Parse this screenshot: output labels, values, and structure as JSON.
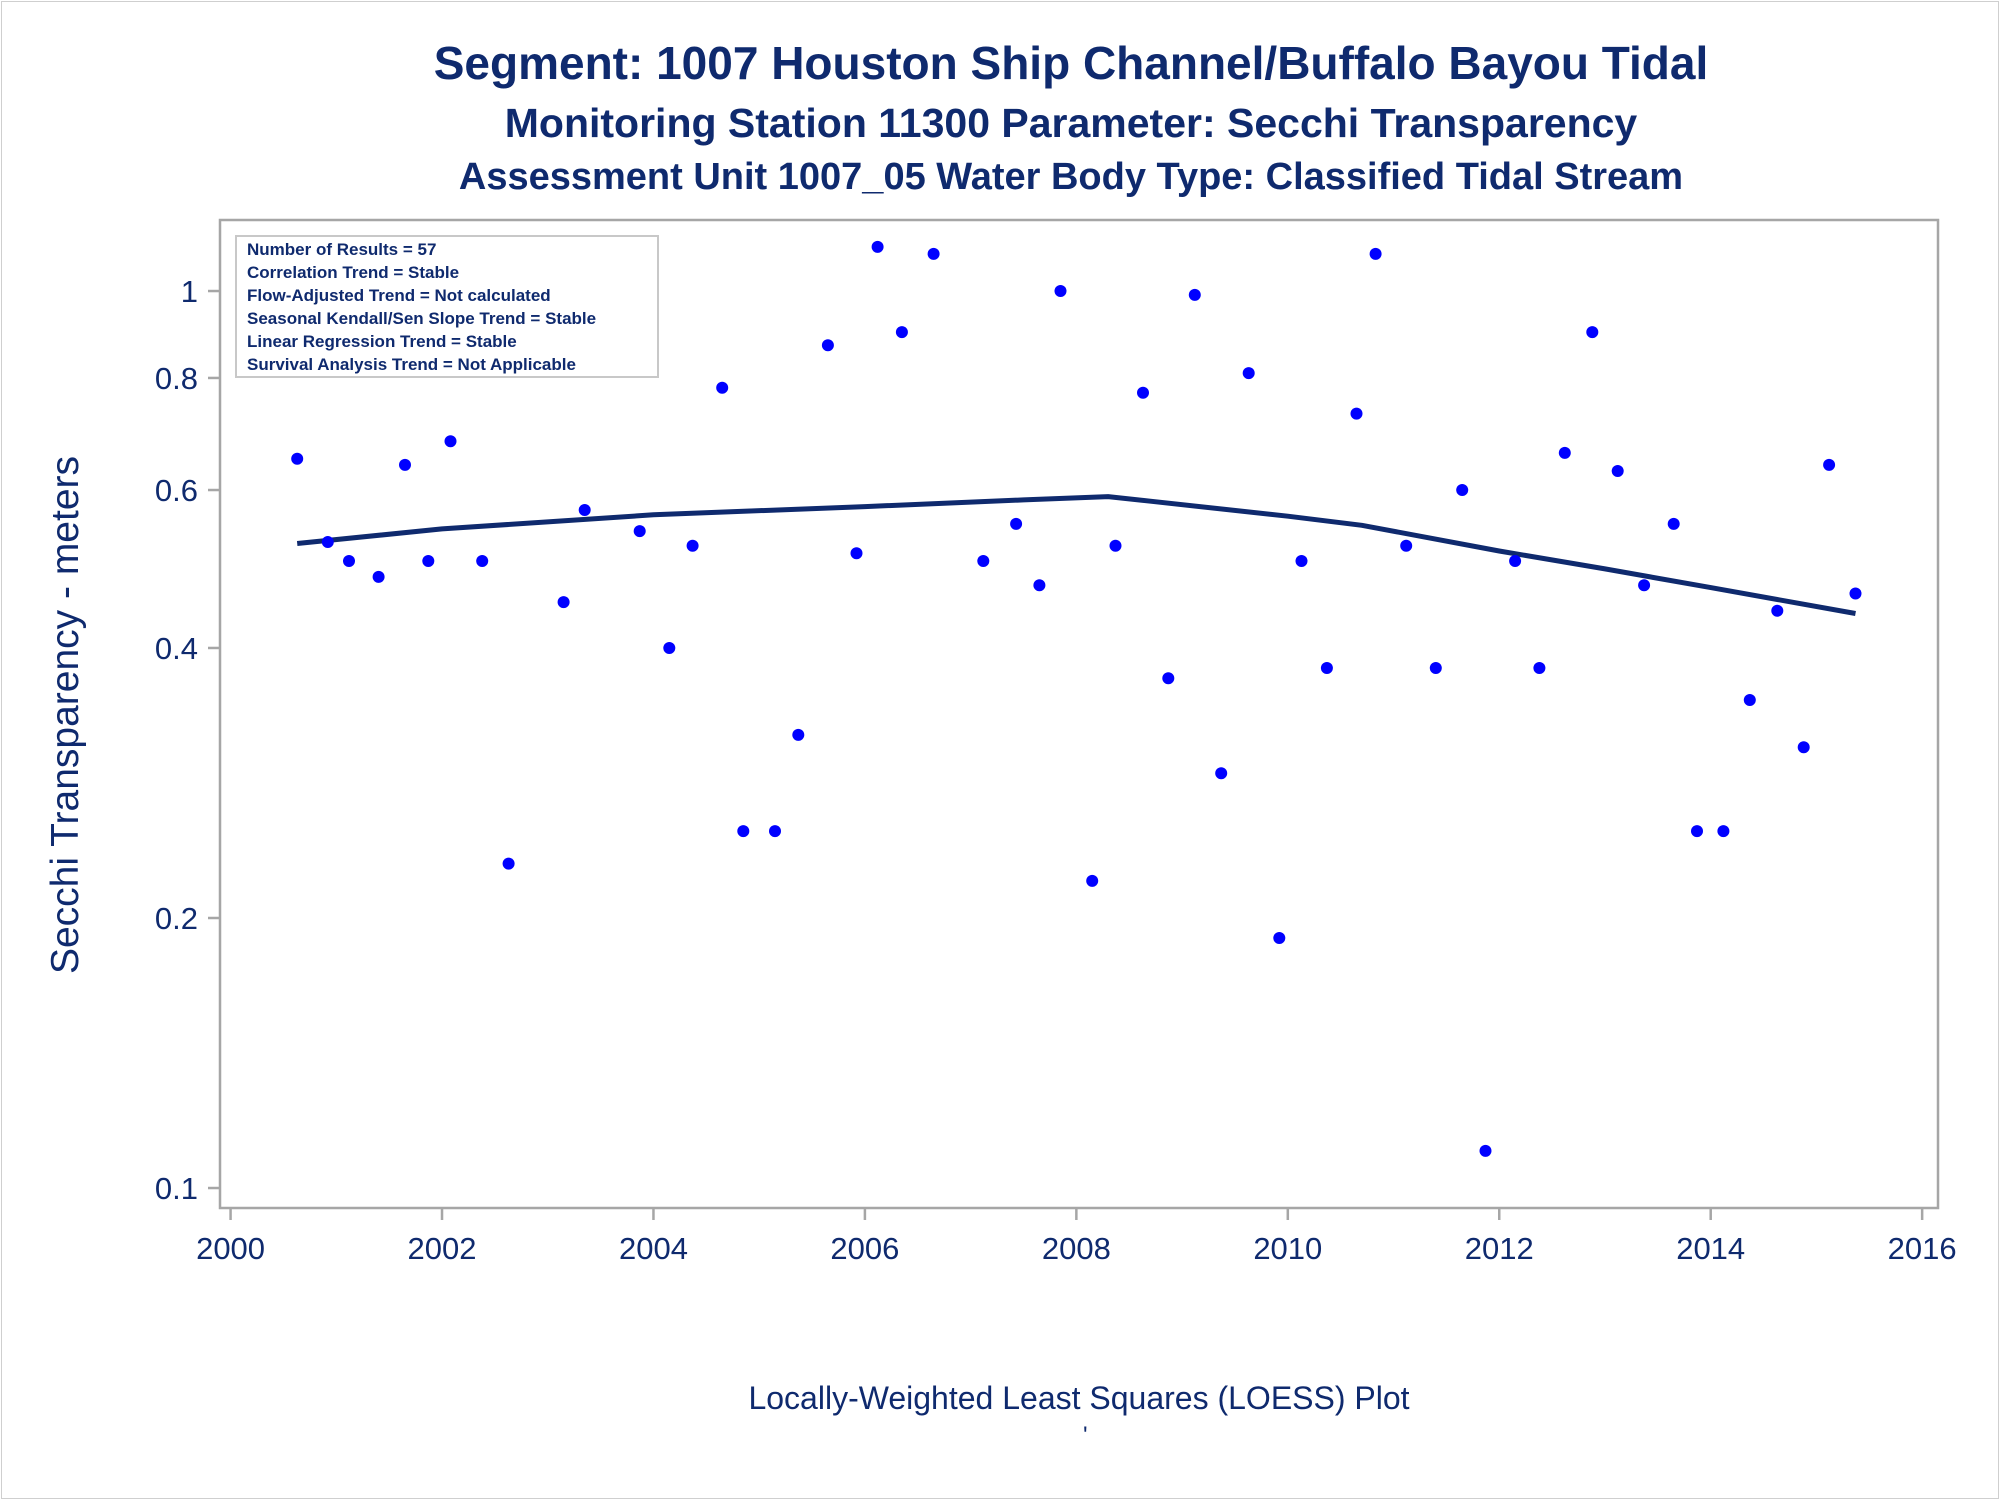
{
  "titles": {
    "line1": "Segment: 1007  Houston Ship Channel/Buffalo Bayou Tidal",
    "line2": "Monitoring Station 11300 Parameter: Secchi Transparency",
    "line3": "Assessment Unit 1007_05   Water Body Type: Classified Tidal Stream"
  },
  "footnote": "Locally-Weighted Least Squares (LOESS) Plot",
  "footnote_mark": "'",
  "info_box": [
    "Number of Results = 57",
    "Correlation Trend = Stable",
    "Flow-Adjusted Trend = Not calculated",
    "Seasonal Kendall/Sen Slope Trend = Stable",
    "Linear Regression Trend = Stable",
    "Survival Analysis Trend = Not Applicable"
  ],
  "colors": {
    "points": "#0000ff",
    "loess": "#0f2a6e",
    "text": "#0f2a6e",
    "frame": "#a6a6a6"
  },
  "chart_data": {
    "type": "scatter",
    "title": "Segment: 1007  Houston Ship Channel/Buffalo Bayou Tidal",
    "xlabel": "",
    "ylabel": "Secchi Transparency - meters",
    "xlim": [
      1999.9,
      2016.15
    ],
    "ylim": [
      0.095,
      1.2
    ],
    "y_scale": "log",
    "x_ticks": [
      2000,
      2002,
      2004,
      2006,
      2008,
      2010,
      2012,
      2014,
      2016
    ],
    "y_ticks": [
      0.1,
      0.2,
      0.4,
      0.6,
      0.8,
      1
    ],
    "y_tick_labels": [
      "0.1",
      "0.2",
      "0.4",
      "0.6",
      "0.8",
      "1"
    ],
    "grid": false,
    "points": [
      [
        2000.63,
        0.65
      ],
      [
        2000.92,
        0.525
      ],
      [
        2001.12,
        0.5
      ],
      [
        2001.4,
        0.48
      ],
      [
        2001.65,
        0.64
      ],
      [
        2001.87,
        0.5
      ],
      [
        2002.08,
        0.68
      ],
      [
        2002.38,
        0.5
      ],
      [
        2002.63,
        0.23
      ],
      [
        2003.15,
        0.45
      ],
      [
        2003.35,
        0.57
      ],
      [
        2003.87,
        0.54
      ],
      [
        2004.15,
        0.4
      ],
      [
        2004.37,
        0.52
      ],
      [
        2004.65,
        0.78
      ],
      [
        2004.85,
        0.25
      ],
      [
        2005.15,
        0.25
      ],
      [
        2005.37,
        0.32
      ],
      [
        2005.65,
        0.87
      ],
      [
        2005.92,
        0.51
      ],
      [
        2006.12,
        1.12
      ],
      [
        2006.35,
        0.9
      ],
      [
        2006.65,
        1.1
      ],
      [
        2007.12,
        0.5
      ],
      [
        2007.43,
        0.55
      ],
      [
        2007.65,
        0.47
      ],
      [
        2007.85,
        1.0
      ],
      [
        2008.15,
        0.22
      ],
      [
        2008.37,
        0.52
      ],
      [
        2008.63,
        0.77
      ],
      [
        2008.87,
        0.37
      ],
      [
        2009.12,
        0.99
      ],
      [
        2009.37,
        0.29
      ],
      [
        2009.63,
        0.81
      ],
      [
        2009.92,
        0.19
      ],
      [
        2010.13,
        0.5
      ],
      [
        2010.37,
        0.38
      ],
      [
        2010.65,
        0.73
      ],
      [
        2010.83,
        1.1
      ],
      [
        2011.12,
        0.52
      ],
      [
        2011.4,
        0.38
      ],
      [
        2011.65,
        0.6
      ],
      [
        2011.87,
        0.11
      ],
      [
        2012.15,
        0.5
      ],
      [
        2012.38,
        0.38
      ],
      [
        2012.62,
        0.66
      ],
      [
        2012.88,
        0.9
      ],
      [
        2013.12,
        0.63
      ],
      [
        2013.37,
        0.47
      ],
      [
        2013.65,
        0.55
      ],
      [
        2013.87,
        0.25
      ],
      [
        2014.12,
        0.25
      ],
      [
        2014.37,
        0.35
      ],
      [
        2014.63,
        0.44
      ],
      [
        2014.88,
        0.31
      ],
      [
        2015.12,
        0.64
      ],
      [
        2015.37,
        0.46
      ]
    ],
    "loess": [
      [
        2000.63,
        0.523
      ],
      [
        2002,
        0.543
      ],
      [
        2004,
        0.563
      ],
      [
        2006,
        0.575
      ],
      [
        2007.5,
        0.585
      ],
      [
        2008.3,
        0.59
      ],
      [
        2008.7,
        0.583
      ],
      [
        2010,
        0.561
      ],
      [
        2010.7,
        0.548
      ],
      [
        2012,
        0.513
      ],
      [
        2013,
        0.49
      ],
      [
        2014,
        0.467
      ],
      [
        2015.37,
        0.437
      ]
    ]
  }
}
